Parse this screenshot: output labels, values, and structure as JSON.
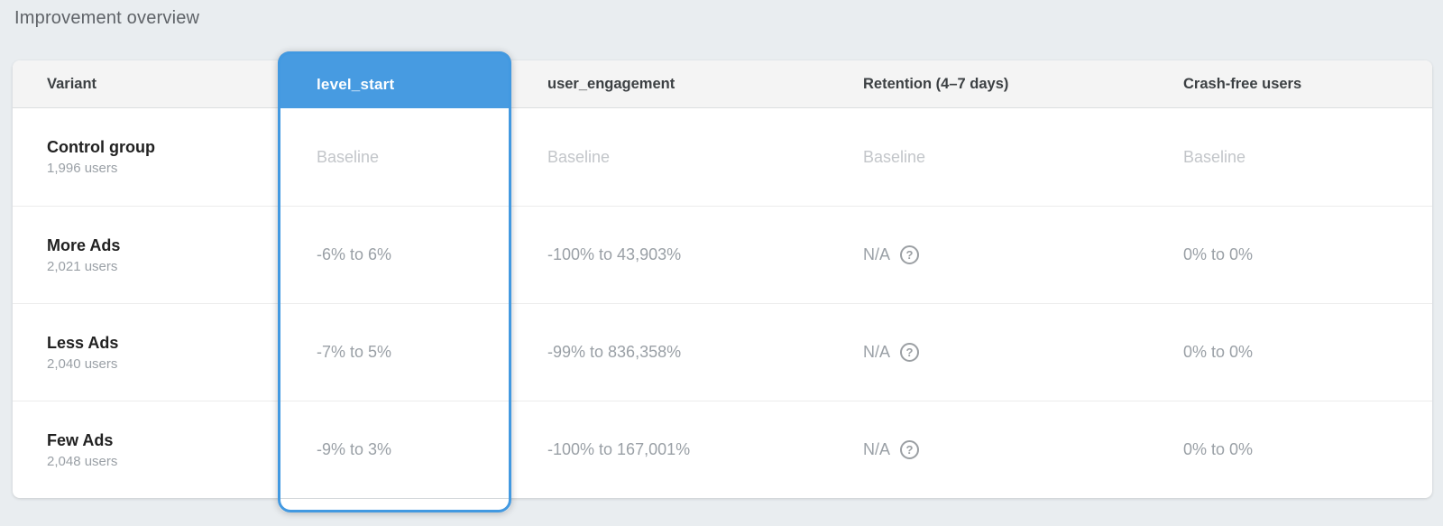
{
  "title": "Improvement overview",
  "columns": {
    "variant": "Variant",
    "level_start": "level_start",
    "user_engagement": "user_engagement",
    "retention": "Retention (4–7 days)",
    "crash_free": "Crash-free users"
  },
  "selected_column": "level_start",
  "rows": [
    {
      "variant": "Control group",
      "users": "1,996 users",
      "level_start": "Baseline",
      "user_engagement": "Baseline",
      "retention": "Baseline",
      "crash_free": "Baseline"
    },
    {
      "variant": "More Ads",
      "users": "2,021 users",
      "level_start": "-6% to 6%",
      "user_engagement": "-100% to 43,903%",
      "retention": "N/A",
      "crash_free": "0% to 0%"
    },
    {
      "variant": "Less Ads",
      "users": "2,040 users",
      "level_start": "-7% to 5%",
      "user_engagement": "-99% to 836,358%",
      "retention": "N/A",
      "crash_free": "0% to 0%"
    },
    {
      "variant": "Few Ads",
      "users": "2,048 users",
      "level_start": "-9% to 3%",
      "user_engagement": "-100% to 167,001%",
      "retention": "N/A",
      "crash_free": "0% to 0%"
    }
  ],
  "icons": {
    "help": "?"
  },
  "colors": {
    "accent_blue": "#479be1",
    "page_background": "#e9edf0",
    "header_background": "#f4f4f4",
    "value_text": "#9aa0a6",
    "baseline_text": "#c3c6ca"
  }
}
